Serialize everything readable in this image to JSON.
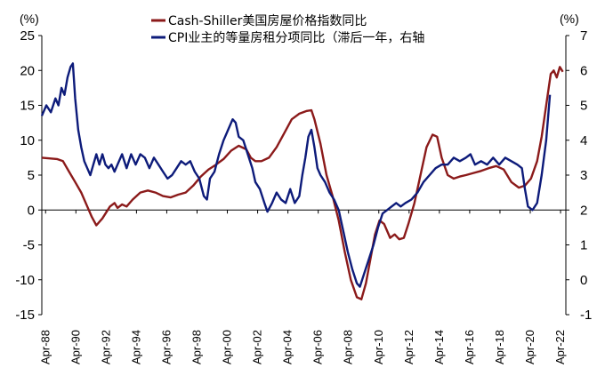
{
  "chart_data": {
    "type": "line",
    "title": "",
    "left_axis": {
      "unit_label": "(%)",
      "min": -15,
      "max": 25,
      "ticks": [
        "-15",
        "-10",
        "-5",
        "0",
        "5",
        "10",
        "15",
        "20",
        "25"
      ]
    },
    "right_axis": {
      "unit_label": "(%)",
      "min": -1,
      "max": 7,
      "ticks": [
        "-1",
        "0",
        "1",
        "2",
        "3",
        "4",
        "5",
        "6",
        "7"
      ]
    },
    "x_axis": {
      "start": 1988.0,
      "end": 2022.6,
      "ticks": [
        "Apr-88",
        "Apr-90",
        "Apr-92",
        "Apr-94",
        "Apr-96",
        "Apr-98",
        "Apr-00",
        "Apr-02",
        "Apr-04",
        "Apr-06",
        "Apr-08",
        "Apr-10",
        "Apr-12",
        "Apr-14",
        "Apr-16",
        "Apr-18",
        "Apr-20",
        "Apr-22"
      ],
      "tick_years": [
        1988.25,
        1990.25,
        1992.25,
        1994.25,
        1996.25,
        1998.25,
        2000.25,
        2002.25,
        2004.25,
        2006.25,
        2008.25,
        2010.25,
        2012.25,
        2014.25,
        2016.25,
        2018.25,
        2020.25,
        2022.25
      ]
    },
    "legend_placement": "top-center",
    "grid": false,
    "series": [
      {
        "name": "Cash-Shiller美国房屋价格指数同比",
        "axis": "left",
        "color": "#8B1A1A",
        "points": [
          [
            1988.0,
            7.5
          ],
          [
            1988.5,
            7.4
          ],
          [
            1989.0,
            7.3
          ],
          [
            1989.4,
            7.0
          ],
          [
            1989.8,
            5.5
          ],
          [
            1990.2,
            4.0
          ],
          [
            1990.6,
            2.5
          ],
          [
            1991.0,
            0.5
          ],
          [
            1991.3,
            -1.0
          ],
          [
            1991.6,
            -2.2
          ],
          [
            1992.0,
            -1.2
          ],
          [
            1992.5,
            0.5
          ],
          [
            1992.8,
            1.0
          ],
          [
            1993.0,
            0.3
          ],
          [
            1993.3,
            0.8
          ],
          [
            1993.6,
            0.5
          ],
          [
            1994.0,
            1.5
          ],
          [
            1994.5,
            2.5
          ],
          [
            1995.0,
            2.8
          ],
          [
            1995.5,
            2.5
          ],
          [
            1996.0,
            2.0
          ],
          [
            1996.5,
            1.8
          ],
          [
            1997.0,
            2.2
          ],
          [
            1997.5,
            2.5
          ],
          [
            1998.0,
            3.5
          ],
          [
            1998.5,
            4.8
          ],
          [
            1999.0,
            5.8
          ],
          [
            1999.5,
            6.5
          ],
          [
            2000.0,
            7.3
          ],
          [
            2000.5,
            8.5
          ],
          [
            2001.0,
            9.2
          ],
          [
            2001.5,
            8.7
          ],
          [
            2001.8,
            7.5
          ],
          [
            2002.1,
            7.0
          ],
          [
            2002.5,
            7.0
          ],
          [
            2003.0,
            7.5
          ],
          [
            2003.5,
            9.0
          ],
          [
            2004.0,
            11.0
          ],
          [
            2004.5,
            13.0
          ],
          [
            2005.0,
            13.8
          ],
          [
            2005.5,
            14.2
          ],
          [
            2005.8,
            14.3
          ],
          [
            2006.0,
            13.0
          ],
          [
            2006.4,
            9.5
          ],
          [
            2006.8,
            5.0
          ],
          [
            2007.2,
            2.0
          ],
          [
            2007.6,
            -1.5
          ],
          [
            2008.0,
            -6.0
          ],
          [
            2008.4,
            -10.0
          ],
          [
            2008.8,
            -12.5
          ],
          [
            2009.1,
            -12.8
          ],
          [
            2009.4,
            -10.5
          ],
          [
            2009.7,
            -7.0
          ],
          [
            2010.0,
            -3.5
          ],
          [
            2010.3,
            -1.5
          ],
          [
            2010.6,
            -2.0
          ],
          [
            2011.0,
            -4.0
          ],
          [
            2011.3,
            -3.5
          ],
          [
            2011.6,
            -4.2
          ],
          [
            2011.9,
            -4.0
          ],
          [
            2012.2,
            -2.0
          ],
          [
            2012.6,
            1.0
          ],
          [
            2013.0,
            5.0
          ],
          [
            2013.4,
            9.0
          ],
          [
            2013.8,
            10.8
          ],
          [
            2014.1,
            10.5
          ],
          [
            2014.4,
            7.5
          ],
          [
            2014.8,
            5.0
          ],
          [
            2015.2,
            4.5
          ],
          [
            2015.6,
            4.8
          ],
          [
            2016.0,
            5.0
          ],
          [
            2016.5,
            5.3
          ],
          [
            2017.0,
            5.6
          ],
          [
            2017.5,
            6.0
          ],
          [
            2018.0,
            6.3
          ],
          [
            2018.5,
            5.8
          ],
          [
            2019.0,
            4.0
          ],
          [
            2019.5,
            3.2
          ],
          [
            2019.9,
            3.5
          ],
          [
            2020.3,
            4.5
          ],
          [
            2020.7,
            7.0
          ],
          [
            2021.0,
            10.5
          ],
          [
            2021.3,
            15.0
          ],
          [
            2021.6,
            19.5
          ],
          [
            2021.8,
            20.0
          ],
          [
            2022.0,
            19.0
          ],
          [
            2022.2,
            20.5
          ],
          [
            2022.4,
            19.8
          ]
        ]
      },
      {
        "name": "CPI业主的等量房租分项同比（滞后一年，右轴",
        "axis": "right",
        "color": "#0D1B7A",
        "points": [
          [
            1988.0,
            4.7
          ],
          [
            1988.3,
            5.0
          ],
          [
            1988.6,
            4.8
          ],
          [
            1988.9,
            5.2
          ],
          [
            1989.1,
            5.0
          ],
          [
            1989.3,
            5.5
          ],
          [
            1989.5,
            5.3
          ],
          [
            1989.7,
            5.8
          ],
          [
            1989.9,
            6.1
          ],
          [
            1990.05,
            6.2
          ],
          [
            1990.2,
            5.2
          ],
          [
            1990.4,
            4.3
          ],
          [
            1990.6,
            3.8
          ],
          [
            1990.8,
            3.4
          ],
          [
            1991.0,
            3.2
          ],
          [
            1991.2,
            3.0
          ],
          [
            1991.4,
            3.3
          ],
          [
            1991.6,
            3.6
          ],
          [
            1991.8,
            3.3
          ],
          [
            1992.0,
            3.6
          ],
          [
            1992.2,
            3.3
          ],
          [
            1992.4,
            3.2
          ],
          [
            1992.6,
            3.3
          ],
          [
            1992.8,
            3.1
          ],
          [
            1993.0,
            3.3
          ],
          [
            1993.3,
            3.6
          ],
          [
            1993.6,
            3.2
          ],
          [
            1993.9,
            3.6
          ],
          [
            1994.2,
            3.3
          ],
          [
            1994.5,
            3.6
          ],
          [
            1994.8,
            3.5
          ],
          [
            1995.1,
            3.2
          ],
          [
            1995.4,
            3.5
          ],
          [
            1995.7,
            3.3
          ],
          [
            1996.0,
            3.1
          ],
          [
            1996.3,
            2.9
          ],
          [
            1996.6,
            3.0
          ],
          [
            1996.9,
            3.2
          ],
          [
            1997.2,
            3.4
          ],
          [
            1997.5,
            3.3
          ],
          [
            1997.8,
            3.4
          ],
          [
            1998.1,
            3.1
          ],
          [
            1998.4,
            2.9
          ],
          [
            1998.7,
            2.4
          ],
          [
            1998.9,
            2.3
          ],
          [
            1999.1,
            2.9
          ],
          [
            1999.4,
            3.1
          ],
          [
            1999.7,
            3.6
          ],
          [
            2000.0,
            4.0
          ],
          [
            2000.3,
            4.3
          ],
          [
            2000.6,
            4.6
          ],
          [
            2000.8,
            4.5
          ],
          [
            2001.0,
            4.1
          ],
          [
            2001.3,
            4.0
          ],
          [
            2001.6,
            3.6
          ],
          [
            2001.9,
            3.2
          ],
          [
            2002.1,
            2.8
          ],
          [
            2002.4,
            2.6
          ],
          [
            2002.7,
            2.2
          ],
          [
            2002.9,
            1.95
          ],
          [
            2003.2,
            2.2
          ],
          [
            2003.5,
            2.5
          ],
          [
            2003.8,
            2.3
          ],
          [
            2004.1,
            2.2
          ],
          [
            2004.4,
            2.6
          ],
          [
            2004.7,
            2.2
          ],
          [
            2005.0,
            2.4
          ],
          [
            2005.2,
            3.0
          ],
          [
            2005.4,
            3.5
          ],
          [
            2005.6,
            4.1
          ],
          [
            2005.8,
            4.3
          ],
          [
            2006.0,
            3.8
          ],
          [
            2006.2,
            3.2
          ],
          [
            2006.4,
            3.0
          ],
          [
            2006.7,
            2.8
          ],
          [
            2007.0,
            2.5
          ],
          [
            2007.3,
            2.3
          ],
          [
            2007.6,
            2.0
          ],
          [
            2007.9,
            1.4
          ],
          [
            2008.2,
            0.8
          ],
          [
            2008.5,
            0.3
          ],
          [
            2008.8,
            -0.1
          ],
          [
            2009.0,
            -0.2
          ],
          [
            2009.3,
            0.2
          ],
          [
            2009.6,
            0.6
          ],
          [
            2009.9,
            1.0
          ],
          [
            2010.2,
            1.5
          ],
          [
            2010.5,
            1.9
          ],
          [
            2010.8,
            2.0
          ],
          [
            2011.1,
            2.1
          ],
          [
            2011.4,
            2.2
          ],
          [
            2011.7,
            2.1
          ],
          [
            2012.0,
            2.2
          ],
          [
            2012.4,
            2.3
          ],
          [
            2012.8,
            2.5
          ],
          [
            2013.2,
            2.8
          ],
          [
            2013.6,
            3.0
          ],
          [
            2014.0,
            3.2
          ],
          [
            2014.4,
            3.3
          ],
          [
            2014.8,
            3.3
          ],
          [
            2015.2,
            3.5
          ],
          [
            2015.6,
            3.4
          ],
          [
            2016.0,
            3.5
          ],
          [
            2016.3,
            3.6
          ],
          [
            2016.6,
            3.3
          ],
          [
            2017.0,
            3.4
          ],
          [
            2017.4,
            3.3
          ],
          [
            2017.8,
            3.5
          ],
          [
            2018.2,
            3.3
          ],
          [
            2018.6,
            3.5
          ],
          [
            2019.0,
            3.4
          ],
          [
            2019.4,
            3.3
          ],
          [
            2019.7,
            3.2
          ],
          [
            2019.9,
            2.6
          ],
          [
            2020.1,
            2.1
          ],
          [
            2020.4,
            2.0
          ],
          [
            2020.7,
            2.2
          ],
          [
            2021.0,
            3.0
          ],
          [
            2021.3,
            4.0
          ],
          [
            2021.55,
            5.3
          ]
        ]
      }
    ]
  }
}
